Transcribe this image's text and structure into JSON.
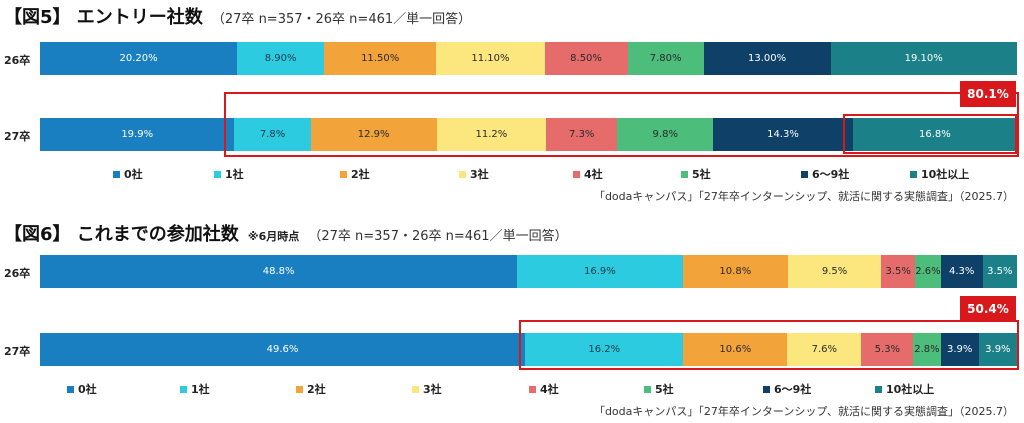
{
  "colors": [
    "#1a7fc1",
    "#2ccbe0",
    "#f2a33a",
    "#fbe77d",
    "#e66c6c",
    "#4dbd7b",
    "#0e4068",
    "#1b8087"
  ],
  "text_colors": [
    "#ffffff",
    "#1a3a4a",
    "#2a2a2a",
    "#2a2a2a",
    "#2a2a2a",
    "#2a2a2a",
    "#ffffff",
    "#ffffff"
  ],
  "legend": [
    "0社",
    "1社",
    "2社",
    "3社",
    "4社",
    "5社",
    "6～9社",
    "10社以上"
  ],
  "source": "「dodaキャンパス」「27年卒インターンシップ、就活に関する実態調査」（2025.7）",
  "chart_data": [
    {
      "type": "bar",
      "stacked": true,
      "orientation": "horizontal",
      "title": "【図5】 エントリー社数",
      "subtitle": "（27卒 n=357・26卒 n=461／単一回答）",
      "categories": [
        "26卒",
        "27卒"
      ],
      "series_names": [
        "0社",
        "1社",
        "2社",
        "3社",
        "4社",
        "5社",
        "6～9社",
        "10社以上"
      ],
      "values": [
        [
          20.2,
          8.9,
          11.5,
          11.1,
          8.5,
          7.8,
          13.0,
          19.1
        ],
        [
          19.9,
          7.8,
          12.9,
          11.2,
          7.3,
          9.8,
          14.3,
          16.8
        ]
      ],
      "value_labels": [
        [
          "20.20%",
          "8.90%",
          "11.50%",
          "11.10%",
          "8.50%",
          "7.80%",
          "13.00%",
          "19.10%"
        ],
        [
          "19.9%",
          "7.8%",
          "12.9%",
          "11.2%",
          "7.3%",
          "9.8%",
          "14.3%",
          "16.8%"
        ]
      ],
      "highlight": {
        "row": 1,
        "from_segment": 1,
        "inner_from_segment": 7,
        "label": "80.1%"
      }
    },
    {
      "type": "bar",
      "stacked": true,
      "orientation": "horizontal",
      "title": "【図6】 これまでの参加社数",
      "note": "※6月時点",
      "subtitle": "（27卒 n=357・26卒 n=461／単一回答）",
      "categories": [
        "26卒",
        "27卒"
      ],
      "series_names": [
        "0社",
        "1社",
        "2社",
        "3社",
        "4社",
        "5社",
        "6～9社",
        "10社以上"
      ],
      "values": [
        [
          48.8,
          16.9,
          10.8,
          9.5,
          3.5,
          2.6,
          4.3,
          3.5
        ],
        [
          49.6,
          16.2,
          10.6,
          7.6,
          5.3,
          2.8,
          3.9,
          3.9
        ]
      ],
      "value_labels": [
        [
          "48.8%",
          "16.9%",
          "10.8%",
          "9.5%",
          "3.5%",
          "2.6%",
          "4.3%",
          "3.5%"
        ],
        [
          "49.6%",
          "16.2%",
          "10.6%",
          "7.6%",
          "5.3%",
          "2.8%",
          "3.9%",
          "3.9%"
        ]
      ],
      "highlight": {
        "row": 1,
        "from_segment": 1,
        "label": "50.4%"
      }
    }
  ]
}
